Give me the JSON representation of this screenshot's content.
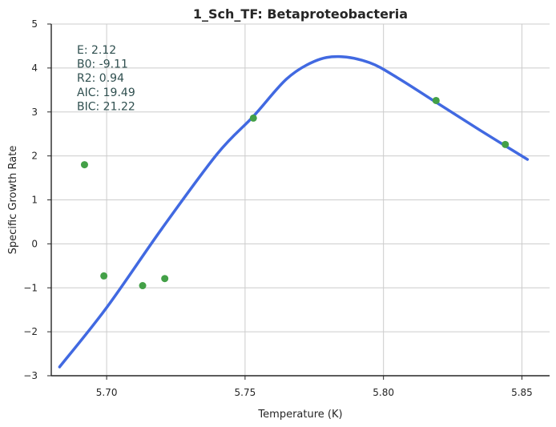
{
  "chart_data": {
    "type": "scatter",
    "title": "1_Sch_TF: Betaproteobacteria",
    "xlabel": "Temperature (K)",
    "ylabel": "Specific Growth Rate",
    "xlim": [
      5.68,
      5.86
    ],
    "ylim": [
      -3,
      5
    ],
    "xticks": [
      5.7,
      5.75,
      5.8,
      5.85
    ],
    "xtick_labels": [
      "5.70",
      "5.75",
      "5.80",
      "5.85"
    ],
    "yticks": [
      -3,
      -2,
      -1,
      0,
      1,
      2,
      3,
      4,
      5
    ],
    "ytick_labels": [
      "−3",
      "−2",
      "−1",
      "0",
      "1",
      "2",
      "3",
      "4",
      "5"
    ],
    "grid": true,
    "colors": {
      "points": "#43a047",
      "fit": "#4169e1",
      "axes": "#262626",
      "grid": "#cccccc",
      "annotation": "#2f4f4f"
    },
    "series": [
      {
        "kind": "scatter",
        "points": [
          {
            "x": 5.692,
            "y": 1.8
          },
          {
            "x": 5.699,
            "y": -0.73
          },
          {
            "x": 5.713,
            "y": -0.95
          },
          {
            "x": 5.721,
            "y": -0.79
          },
          {
            "x": 5.753,
            "y": 2.86
          },
          {
            "x": 5.819,
            "y": 3.26
          },
          {
            "x": 5.844,
            "y": 2.26
          }
        ]
      },
      {
        "kind": "line",
        "points": [
          {
            "x": 5.683,
            "y": -2.8
          },
          {
            "x": 5.7,
            "y": -1.45
          },
          {
            "x": 5.72,
            "y": 0.35
          },
          {
            "x": 5.74,
            "y": 2.05
          },
          {
            "x": 5.753,
            "y": 2.9
          },
          {
            "x": 5.765,
            "y": 3.75
          },
          {
            "x": 5.775,
            "y": 4.15
          },
          {
            "x": 5.784,
            "y": 4.26
          },
          {
            "x": 5.795,
            "y": 4.12
          },
          {
            "x": 5.805,
            "y": 3.78
          },
          {
            "x": 5.819,
            "y": 3.22
          },
          {
            "x": 5.835,
            "y": 2.58
          },
          {
            "x": 5.852,
            "y": 1.92
          }
        ]
      }
    ],
    "annotation_lines": [
      "E:  2.12",
      "B0:  -9.11",
      "R2:  0.94",
      "AIC: 19.49",
      "BIC: 21.22"
    ]
  }
}
